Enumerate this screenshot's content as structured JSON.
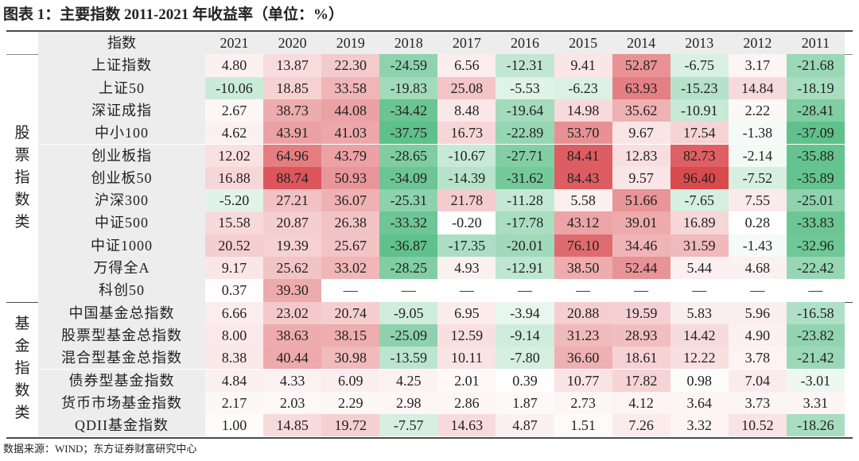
{
  "title": "图表 1：主要指数 2011-2021 年收益率（单位：%）",
  "source": "数据来源：WIND；东方证券财富研究中心",
  "colors": {
    "positive": "#d94a4f",
    "negative": "#5ec08a",
    "header_bg": "#ededed"
  },
  "chart_data": {
    "type": "heatmap",
    "title": "图表 1：主要指数 2011-2021 年收益率（单位：%）",
    "header_label": "指数",
    "columns": [
      "2021",
      "2020",
      "2019",
      "2018",
      "2017",
      "2016",
      "2015",
      "2014",
      "2013",
      "2012",
      "2011"
    ],
    "groups": [
      {
        "label": "股票指数类",
        "rows": [
          {
            "name": "上证指数",
            "values": [
              "4.80",
              "13.87",
              "22.30",
              "-24.59",
              "6.56",
              "-12.31",
              "9.41",
              "52.87",
              "-6.75",
              "3.17",
              "-21.68"
            ]
          },
          {
            "name": "上证50",
            "values": [
              "-10.06",
              "18.85",
              "33.58",
              "-19.83",
              "25.08",
              "-5.53",
              "-6.23",
              "63.93",
              "-15.23",
              "14.84",
              "-18.19"
            ]
          },
          {
            "name": "深证成指",
            "values": [
              "2.67",
              "38.73",
              "44.08",
              "-34.42",
              "8.48",
              "-19.64",
              "14.98",
              "35.62",
              "-10.91",
              "2.22",
              "-28.41"
            ]
          },
          {
            "name": "中小100",
            "values": [
              "4.62",
              "43.91",
              "41.03",
              "-37.75",
              "16.73",
              "-22.89",
              "53.70",
              "9.67",
              "17.54",
              "-1.38",
              "-37.09"
            ]
          },
          {
            "name": "创业板指",
            "values": [
              "12.02",
              "64.96",
              "43.79",
              "-28.65",
              "-10.67",
              "-27.71",
              "84.41",
              "12.83",
              "82.73",
              "-2.14",
              "-35.88"
            ]
          },
          {
            "name": "创业板50",
            "values": [
              "16.88",
              "88.74",
              "50.93",
              "-34.09",
              "-14.39",
              "-31.62",
              "84.43",
              "9.57",
              "96.40",
              "-7.52",
              "-35.89"
            ]
          },
          {
            "name": "沪深300",
            "values": [
              "-5.20",
              "27.21",
              "36.07",
              "-25.31",
              "21.78",
              "-11.28",
              "5.58",
              "51.66",
              "-7.65",
              "7.55",
              "-25.01"
            ]
          },
          {
            "name": "中证500",
            "values": [
              "15.58",
              "20.87",
              "26.38",
              "-33.32",
              "-0.20",
              "-17.78",
              "43.12",
              "39.01",
              "16.89",
              "0.28",
              "-33.83"
            ]
          },
          {
            "name": "中证1000",
            "values": [
              "20.52",
              "19.39",
              "25.67",
              "-36.87",
              "-17.35",
              "-20.01",
              "76.10",
              "34.46",
              "31.59",
              "-1.43",
              "-32.96"
            ]
          },
          {
            "name": "万得全A",
            "values": [
              "9.17",
              "25.62",
              "33.02",
              "-28.25",
              "4.93",
              "-12.91",
              "38.50",
              "52.44",
              "5.44",
              "4.68",
              "-22.42"
            ]
          },
          {
            "name": "科创50",
            "values": [
              "0.37",
              "39.30",
              "—",
              "—",
              "—",
              "—",
              "—",
              "—",
              "—",
              "—",
              "—"
            ]
          }
        ]
      },
      {
        "label": "基金指数类",
        "rows": [
          {
            "name": "中国基金总指数",
            "values": [
              "6.66",
              "23.02",
              "20.74",
              "-9.05",
              "6.95",
              "-3.94",
              "20.88",
              "19.59",
              "5.83",
              "5.96",
              "-16.58"
            ]
          },
          {
            "name": "股票型基金总指数",
            "values": [
              "8.00",
              "38.63",
              "38.15",
              "-25.09",
              "12.59",
              "-9.14",
              "31.23",
              "28.93",
              "14.42",
              "4.90",
              "-23.82"
            ]
          },
          {
            "name": "混合型基金总指数",
            "values": [
              "8.38",
              "40.44",
              "30.98",
              "-13.59",
              "10.11",
              "-7.80",
              "36.60",
              "18.61",
              "12.22",
              "3.78",
              "-21.42"
            ]
          },
          {
            "name": "债券型基金指数",
            "values": [
              "4.84",
              "4.33",
              "6.09",
              "4.25",
              "2.01",
              "0.39",
              "10.77",
              "17.82",
              "0.98",
              "7.04",
              "-3.01"
            ]
          },
          {
            "name": "货币市场基金指数",
            "values": [
              "2.17",
              "2.03",
              "2.29",
              "2.98",
              "2.86",
              "1.87",
              "2.73",
              "4.12",
              "3.64",
              "3.73",
              "3.31"
            ]
          },
          {
            "name": "QDII基金指数",
            "values": [
              "1.00",
              "14.85",
              "19.72",
              "-7.57",
              "14.63",
              "4.87",
              "1.51",
              "7.26",
              "3.32",
              "10.52",
              "-18.26"
            ]
          }
        ]
      }
    ]
  }
}
